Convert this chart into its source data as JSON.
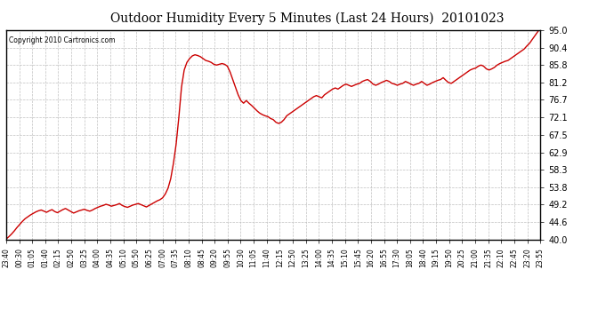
{
  "title": "Outdoor Humidity Every 5 Minutes (Last 24 Hours)  20101023",
  "copyright_text": "Copyright 2010 Cartronics.com",
  "line_color": "#cc0000",
  "background_color": "#ffffff",
  "plot_bg_color": "#ffffff",
  "grid_color": "#c0c0c0",
  "grid_style": "--",
  "ylim": [
    40.0,
    95.0
  ],
  "yticks": [
    40.0,
    44.6,
    49.2,
    53.8,
    58.3,
    62.9,
    67.5,
    72.1,
    76.7,
    81.2,
    85.8,
    90.4,
    95.0
  ],
  "xtick_labels": [
    "23:40",
    "00:30",
    "01:05",
    "01:40",
    "02:15",
    "02:50",
    "03:25",
    "04:00",
    "04:35",
    "05:10",
    "05:50",
    "06:25",
    "07:00",
    "07:35",
    "08:10",
    "08:45",
    "09:20",
    "09:55",
    "10:30",
    "11:05",
    "11:40",
    "12:15",
    "12:50",
    "13:25",
    "14:00",
    "14:35",
    "15:10",
    "15:45",
    "16:20",
    "16:55",
    "17:30",
    "18:05",
    "18:40",
    "19:15",
    "19:50",
    "20:25",
    "21:00",
    "21:35",
    "22:10",
    "22:45",
    "23:20",
    "23:55"
  ],
  "humidity_values": [
    40.2,
    40.8,
    41.5,
    42.3,
    43.2,
    44.0,
    44.8,
    45.5,
    46.0,
    46.5,
    46.9,
    47.3,
    47.6,
    47.8,
    47.5,
    47.2,
    47.6,
    47.9,
    47.4,
    47.1,
    47.5,
    47.9,
    48.2,
    47.8,
    47.4,
    47.0,
    47.3,
    47.6,
    47.8,
    48.0,
    47.7,
    47.5,
    47.8,
    48.2,
    48.5,
    48.8,
    49.0,
    49.3,
    49.1,
    48.8,
    49.0,
    49.2,
    49.5,
    49.0,
    48.7,
    48.5,
    48.8,
    49.1,
    49.3,
    49.5,
    49.2,
    48.9,
    48.6,
    49.0,
    49.4,
    49.8,
    50.2,
    50.5,
    51.0,
    52.0,
    53.5,
    56.0,
    60.0,
    65.0,
    72.0,
    80.0,
    84.5,
    86.5,
    87.5,
    88.2,
    88.5,
    88.3,
    88.0,
    87.5,
    87.0,
    86.8,
    86.5,
    86.0,
    85.8,
    86.0,
    86.2,
    86.0,
    85.5,
    84.0,
    82.0,
    80.0,
    78.0,
    76.5,
    75.8,
    76.5,
    75.8,
    75.2,
    74.5,
    73.8,
    73.2,
    72.8,
    72.5,
    72.3,
    71.8,
    71.5,
    70.8,
    70.5,
    70.8,
    71.5,
    72.5,
    73.0,
    73.5,
    74.0,
    74.5,
    75.0,
    75.5,
    76.0,
    76.5,
    77.0,
    77.5,
    77.8,
    77.5,
    77.2,
    78.0,
    78.5,
    79.0,
    79.5,
    79.8,
    79.5,
    80.0,
    80.5,
    80.8,
    80.5,
    80.2,
    80.5,
    80.8,
    81.0,
    81.5,
    81.8,
    82.0,
    81.5,
    80.8,
    80.5,
    80.8,
    81.2,
    81.5,
    81.8,
    81.5,
    81.0,
    80.8,
    80.5,
    80.8,
    81.0,
    81.5,
    81.2,
    80.8,
    80.5,
    80.8,
    81.0,
    81.5,
    81.0,
    80.5,
    80.8,
    81.2,
    81.5,
    81.8,
    82.0,
    82.5,
    81.8,
    81.2,
    81.0,
    81.5,
    82.0,
    82.5,
    83.0,
    83.5,
    84.0,
    84.5,
    84.8,
    85.0,
    85.5,
    85.8,
    85.5,
    84.8,
    84.5,
    84.8,
    85.2,
    85.8,
    86.2,
    86.5,
    86.8,
    87.0,
    87.5,
    88.0,
    88.5,
    89.0,
    89.5,
    90.0,
    90.8,
    91.5,
    92.5,
    93.5,
    94.5,
    95.5
  ]
}
